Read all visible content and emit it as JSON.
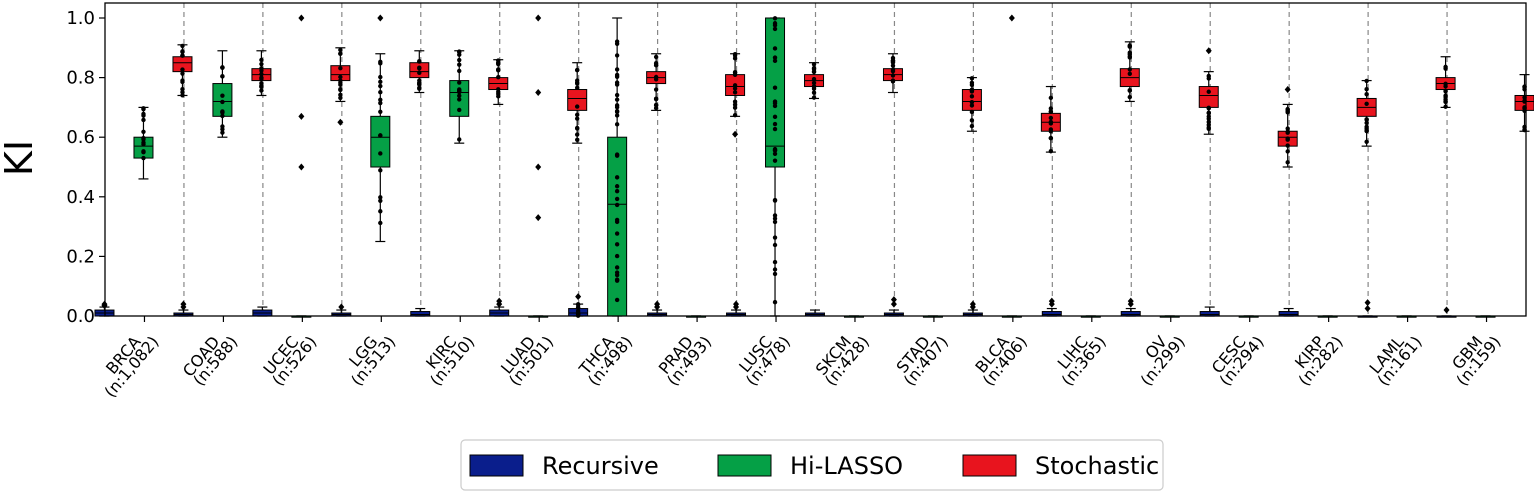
{
  "chart_data": {
    "type": "boxplot",
    "title": "",
    "xlabel": "",
    "ylabel": "KI",
    "ylim": [
      0,
      1.02
    ],
    "yticks": [
      "0.0",
      "0.2",
      "0.4",
      "0.6",
      "0.8",
      "1.0"
    ],
    "grid": false,
    "legend_position": "bottom-center",
    "series": [
      {
        "name": "Recursive",
        "color": "#0a1e8c"
      },
      {
        "name": "Hi-LASSO",
        "color": "#05a046"
      },
      {
        "name": "Stochastic",
        "color": "#e8141e"
      }
    ],
    "categories": [
      {
        "name": "BRCA",
        "n": "(n:1,082)",
        "boxes": [
          {
            "series": "Recursive",
            "q1": 0.0,
            "median": 0.01,
            "q3": 0.02,
            "whisker_low": 0.0,
            "whisker_high": 0.03,
            "outliers": [
              0.035,
              0.04
            ]
          },
          {
            "series": "Hi-LASSO",
            "q1": 0.53,
            "median": 0.57,
            "q3": 0.6,
            "whisker_low": 0.46,
            "whisker_high": 0.7,
            "outliers": []
          },
          {
            "series": "Stochastic",
            "q1": 0.82,
            "median": 0.85,
            "q3": 0.87,
            "whisker_low": 0.74,
            "whisker_high": 0.91,
            "outliers": []
          }
        ]
      },
      {
        "name": "COAD",
        "n": "(n:588)",
        "boxes": [
          {
            "series": "Recursive",
            "q1": 0.0,
            "median": 0.005,
            "q3": 0.01,
            "whisker_low": 0.0,
            "whisker_high": 0.02,
            "outliers": [
              0.03,
              0.04
            ]
          },
          {
            "series": "Hi-LASSO",
            "q1": 0.67,
            "median": 0.72,
            "q3": 0.78,
            "whisker_low": 0.6,
            "whisker_high": 0.89,
            "outliers": []
          },
          {
            "series": "Stochastic",
            "q1": 0.79,
            "median": 0.81,
            "q3": 0.83,
            "whisker_low": 0.74,
            "whisker_high": 0.89,
            "outliers": []
          }
        ]
      },
      {
        "name": "UCEC",
        "n": "(n:526)",
        "boxes": [
          {
            "series": "Recursive",
            "q1": 0.0,
            "median": 0.01,
            "q3": 0.02,
            "whisker_low": 0.0,
            "whisker_high": 0.03,
            "outliers": []
          },
          {
            "series": "Hi-LASSO",
            "q1": 0.0,
            "median": 0.0,
            "q3": 0.0,
            "whisker_low": 0.0,
            "whisker_high": 0.0,
            "outliers": [
              0.5,
              0.67,
              1.0
            ]
          },
          {
            "series": "Stochastic",
            "q1": 0.79,
            "median": 0.81,
            "q3": 0.84,
            "whisker_low": 0.72,
            "whisker_high": 0.9,
            "outliers": [
              0.65
            ]
          }
        ]
      },
      {
        "name": "LGG",
        "n": "(n:513)",
        "boxes": [
          {
            "series": "Recursive",
            "q1": 0.0,
            "median": 0.005,
            "q3": 0.01,
            "whisker_low": 0.0,
            "whisker_high": 0.02,
            "outliers": [
              0.03
            ]
          },
          {
            "series": "Hi-LASSO",
            "q1": 0.5,
            "median": 0.6,
            "q3": 0.67,
            "whisker_low": 0.25,
            "whisker_high": 0.88,
            "outliers": [
              1.0
            ]
          },
          {
            "series": "Stochastic",
            "q1": 0.8,
            "median": 0.82,
            "q3": 0.85,
            "whisker_low": 0.75,
            "whisker_high": 0.89,
            "outliers": []
          }
        ]
      },
      {
        "name": "KIRC",
        "n": "(n:510)",
        "boxes": [
          {
            "series": "Recursive",
            "q1": 0.0,
            "median": 0.005,
            "q3": 0.015,
            "whisker_low": 0.0,
            "whisker_high": 0.025,
            "outliers": []
          },
          {
            "series": "Hi-LASSO",
            "q1": 0.67,
            "median": 0.75,
            "q3": 0.79,
            "whisker_low": 0.58,
            "whisker_high": 0.89,
            "outliers": []
          },
          {
            "series": "Stochastic",
            "q1": 0.76,
            "median": 0.78,
            "q3": 0.8,
            "whisker_low": 0.71,
            "whisker_high": 0.86,
            "outliers": []
          }
        ]
      },
      {
        "name": "LUAD",
        "n": "(n:501)",
        "boxes": [
          {
            "series": "Recursive",
            "q1": 0.0,
            "median": 0.01,
            "q3": 0.02,
            "whisker_low": 0.0,
            "whisker_high": 0.03,
            "outliers": [
              0.04,
              0.05
            ]
          },
          {
            "series": "Hi-LASSO",
            "q1": 0.0,
            "median": 0.0,
            "q3": 0.0,
            "whisker_low": 0.0,
            "whisker_high": 0.0,
            "outliers": [
              0.33,
              0.5,
              0.75,
              1.0
            ]
          },
          {
            "series": "Stochastic",
            "q1": 0.69,
            "median": 0.73,
            "q3": 0.76,
            "whisker_low": 0.58,
            "whisker_high": 0.85,
            "outliers": []
          }
        ]
      },
      {
        "name": "THCA",
        "n": "(n:498)",
        "boxes": [
          {
            "series": "Recursive",
            "q1": 0.0,
            "median": 0.01,
            "q3": 0.025,
            "whisker_low": 0.0,
            "whisker_high": 0.04,
            "outliers": [
              0.065
            ]
          },
          {
            "series": "Hi-LASSO",
            "q1": 0.0,
            "median": 0.375,
            "q3": 0.6,
            "whisker_low": 0.0,
            "whisker_high": 1.0,
            "outliers": []
          },
          {
            "series": "Stochastic",
            "q1": 0.78,
            "median": 0.8,
            "q3": 0.82,
            "whisker_low": 0.69,
            "whisker_high": 0.88,
            "outliers": []
          }
        ]
      },
      {
        "name": "PRAD",
        "n": "(n:493)",
        "boxes": [
          {
            "series": "Recursive",
            "q1": 0.0,
            "median": 0.005,
            "q3": 0.01,
            "whisker_low": 0.0,
            "whisker_high": 0.02,
            "outliers": [
              0.03,
              0.04
            ]
          },
          {
            "series": "Hi-LASSO",
            "q1": 0.0,
            "median": 0.0,
            "q3": 0.0,
            "whisker_low": 0.0,
            "whisker_high": 0.0,
            "outliers": []
          },
          {
            "series": "Stochastic",
            "q1": 0.74,
            "median": 0.77,
            "q3": 0.81,
            "whisker_low": 0.67,
            "whisker_high": 0.88,
            "outliers": [
              0.61
            ]
          }
        ]
      },
      {
        "name": "LUSC",
        "n": "(n:478)",
        "boxes": [
          {
            "series": "Recursive",
            "q1": 0.0,
            "median": 0.005,
            "q3": 0.01,
            "whisker_low": 0.0,
            "whisker_high": 0.02,
            "outliers": [
              0.03,
              0.04
            ]
          },
          {
            "series": "Hi-LASSO",
            "q1": 0.5,
            "median": 0.57,
            "q3": 1.0,
            "whisker_low": 0.0,
            "whisker_high": 1.0,
            "outliers": []
          },
          {
            "series": "Stochastic",
            "q1": 0.77,
            "median": 0.79,
            "q3": 0.81,
            "whisker_low": 0.73,
            "whisker_high": 0.85,
            "outliers": []
          }
        ]
      },
      {
        "name": "SKCM",
        "n": "(n:428)",
        "boxes": [
          {
            "series": "Recursive",
            "q1": 0.0,
            "median": 0.005,
            "q3": 0.01,
            "whisker_low": 0.0,
            "whisker_high": 0.02,
            "outliers": []
          },
          {
            "series": "Hi-LASSO",
            "q1": 0.0,
            "median": 0.0,
            "q3": 0.0,
            "whisker_low": 0.0,
            "whisker_high": 0.0,
            "outliers": []
          },
          {
            "series": "Stochastic",
            "q1": 0.79,
            "median": 0.81,
            "q3": 0.83,
            "whisker_low": 0.75,
            "whisker_high": 0.88,
            "outliers": []
          }
        ]
      },
      {
        "name": "STAD",
        "n": "(n:407)",
        "boxes": [
          {
            "series": "Recursive",
            "q1": 0.0,
            "median": 0.005,
            "q3": 0.01,
            "whisker_low": 0.0,
            "whisker_high": 0.02,
            "outliers": [
              0.04,
              0.055
            ]
          },
          {
            "series": "Hi-LASSO",
            "q1": 0.0,
            "median": 0.0,
            "q3": 0.0,
            "whisker_low": 0.0,
            "whisker_high": 0.0,
            "outliers": []
          },
          {
            "series": "Stochastic",
            "q1": 0.69,
            "median": 0.72,
            "q3": 0.76,
            "whisker_low": 0.62,
            "whisker_high": 0.8,
            "outliers": []
          }
        ]
      },
      {
        "name": "BLCA",
        "n": "(n:406)",
        "boxes": [
          {
            "series": "Recursive",
            "q1": 0.0,
            "median": 0.005,
            "q3": 0.01,
            "whisker_low": 0.0,
            "whisker_high": 0.02,
            "outliers": [
              0.03,
              0.04
            ]
          },
          {
            "series": "Hi-LASSO",
            "q1": 0.0,
            "median": 0.0,
            "q3": 0.0,
            "whisker_low": 0.0,
            "whisker_high": 0.0,
            "outliers": [
              1.0
            ]
          },
          {
            "series": "Stochastic",
            "q1": 0.62,
            "median": 0.65,
            "q3": 0.68,
            "whisker_low": 0.55,
            "whisker_high": 0.77,
            "outliers": []
          }
        ]
      },
      {
        "name": "LIHC",
        "n": "(n:365)",
        "boxes": [
          {
            "series": "Recursive",
            "q1": 0.0,
            "median": 0.005,
            "q3": 0.015,
            "whisker_low": 0.0,
            "whisker_high": 0.025,
            "outliers": [
              0.04,
              0.05
            ]
          },
          {
            "series": "Hi-LASSO",
            "q1": 0.0,
            "median": 0.0,
            "q3": 0.0,
            "whisker_low": 0.0,
            "whisker_high": 0.0,
            "outliers": []
          },
          {
            "series": "Stochastic",
            "q1": 0.77,
            "median": 0.8,
            "q3": 0.83,
            "whisker_low": 0.72,
            "whisker_high": 0.92,
            "outliers": []
          }
        ]
      },
      {
        "name": "OV",
        "n": "(n:299)",
        "boxes": [
          {
            "series": "Recursive",
            "q1": 0.0,
            "median": 0.005,
            "q3": 0.015,
            "whisker_low": 0.0,
            "whisker_high": 0.025,
            "outliers": [
              0.04,
              0.05
            ]
          },
          {
            "series": "Hi-LASSO",
            "q1": 0.0,
            "median": 0.0,
            "q3": 0.0,
            "whisker_low": 0.0,
            "whisker_high": 0.0,
            "outliers": []
          },
          {
            "series": "Stochastic",
            "q1": 0.7,
            "median": 0.74,
            "q3": 0.77,
            "whisker_low": 0.61,
            "whisker_high": 0.82,
            "outliers": [
              0.89
            ]
          }
        ]
      },
      {
        "name": "CESC",
        "n": "(n:294)",
        "boxes": [
          {
            "series": "Recursive",
            "q1": 0.0,
            "median": 0.005,
            "q3": 0.015,
            "whisker_low": 0.0,
            "whisker_high": 0.03,
            "outliers": []
          },
          {
            "series": "Hi-LASSO",
            "q1": 0.0,
            "median": 0.0,
            "q3": 0.0,
            "whisker_low": 0.0,
            "whisker_high": 0.0,
            "outliers": []
          },
          {
            "series": "Stochastic",
            "q1": 0.57,
            "median": 0.6,
            "q3": 0.62,
            "whisker_low": 0.5,
            "whisker_high": 0.71,
            "outliers": [
              0.76
            ]
          }
        ]
      },
      {
        "name": "KIRP",
        "n": "(n:282)",
        "boxes": [
          {
            "series": "Recursive",
            "q1": 0.0,
            "median": 0.005,
            "q3": 0.015,
            "whisker_low": 0.0,
            "whisker_high": 0.025,
            "outliers": []
          },
          {
            "series": "Hi-LASSO",
            "q1": 0.0,
            "median": 0.0,
            "q3": 0.0,
            "whisker_low": 0.0,
            "whisker_high": 0.0,
            "outliers": []
          },
          {
            "series": "Stochastic",
            "q1": 0.67,
            "median": 0.7,
            "q3": 0.73,
            "whisker_low": 0.57,
            "whisker_high": 0.79,
            "outliers": []
          }
        ]
      },
      {
        "name": "LAML",
        "n": "(n:161)",
        "boxes": [
          {
            "series": "Recursive",
            "q1": 0.0,
            "median": 0.0,
            "q3": 0.0,
            "whisker_low": 0.0,
            "whisker_high": 0.0,
            "outliers": [
              0.025,
              0.045
            ]
          },
          {
            "series": "Hi-LASSO",
            "q1": 0.0,
            "median": 0.0,
            "q3": 0.0,
            "whisker_low": 0.0,
            "whisker_high": 0.0,
            "outliers": []
          },
          {
            "series": "Stochastic",
            "q1": 0.76,
            "median": 0.78,
            "q3": 0.8,
            "whisker_low": 0.7,
            "whisker_high": 0.87,
            "outliers": []
          }
        ]
      },
      {
        "name": "GBM",
        "n": "(n:159)",
        "boxes": [
          {
            "series": "Recursive",
            "q1": 0.0,
            "median": 0.0,
            "q3": 0.0,
            "whisker_low": 0.0,
            "whisker_high": 0.0,
            "outliers": [
              0.02
            ]
          },
          {
            "series": "Hi-LASSO",
            "q1": 0.0,
            "median": 0.0,
            "q3": 0.0,
            "whisker_low": 0.0,
            "whisker_high": 0.0,
            "outliers": []
          },
          {
            "series": "Stochastic",
            "q1": 0.69,
            "median": 0.72,
            "q3": 0.74,
            "whisker_low": 0.62,
            "whisker_high": 0.81,
            "outliers": []
          }
        ]
      }
    ]
  }
}
